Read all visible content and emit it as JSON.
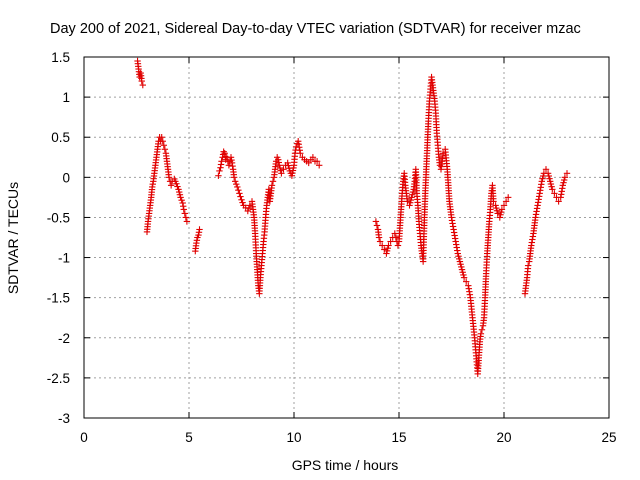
{
  "chart_data": {
    "type": "scatter",
    "title": "Day 200 of 2021, Sidereal Day-to-day VTEC variation (SDTVAR) for receiver mzac",
    "xlabel": "GPS time / hours",
    "ylabel": "SDTVAR / TECUs",
    "xlim": [
      0,
      25
    ],
    "ylim": [
      -3,
      1.5
    ],
    "xticks": [
      0,
      5,
      10,
      15,
      20,
      25
    ],
    "yticks": [
      -3,
      -2.5,
      -2,
      -1.5,
      -1,
      -0.5,
      0,
      0.5,
      1,
      1.5
    ],
    "xtick_labels": [
      "0",
      "5",
      "10",
      "15",
      "20",
      "25"
    ],
    "ytick_labels": [
      "-3",
      "-2.5",
      "-2",
      "-1.5",
      "-1",
      "-0.5",
      "0",
      "0.5",
      "1",
      "1.5"
    ],
    "grid": true,
    "marker": "+",
    "marker_color": "#e00000",
    "series": [
      {
        "name": "mzac",
        "segments": [
          [
            [
              2.55,
              1.45
            ],
            [
              2.6,
              1.35
            ],
            [
              2.65,
              1.25
            ],
            [
              2.7,
              1.3
            ],
            [
              2.75,
              1.2
            ],
            [
              2.8,
              1.15
            ]
          ],
          [
            [
              3.0,
              -0.68
            ],
            [
              3.05,
              -0.55
            ],
            [
              3.1,
              -0.45
            ],
            [
              3.15,
              -0.35
            ],
            [
              3.2,
              -0.25
            ],
            [
              3.25,
              -0.12
            ],
            [
              3.3,
              -0.05
            ],
            [
              3.35,
              0.05
            ],
            [
              3.4,
              0.15
            ],
            [
              3.45,
              0.25
            ],
            [
              3.5,
              0.35
            ],
            [
              3.55,
              0.45
            ],
            [
              3.6,
              0.5
            ],
            [
              3.65,
              0.45
            ],
            [
              3.7,
              0.5
            ],
            [
              3.75,
              0.45
            ],
            [
              3.8,
              0.4
            ],
            [
              3.85,
              0.35
            ],
            [
              3.9,
              0.3
            ],
            [
              3.95,
              0.2
            ],
            [
              4.0,
              0.1
            ],
            [
              4.05,
              0.0
            ],
            [
              4.1,
              -0.05
            ],
            [
              4.15,
              -0.1
            ],
            [
              4.2,
              -0.05
            ],
            [
              4.3,
              -0.02
            ],
            [
              4.4,
              -0.08
            ],
            [
              4.5,
              -0.15
            ],
            [
              4.6,
              -0.25
            ],
            [
              4.7,
              -0.32
            ],
            [
              4.75,
              -0.4
            ],
            [
              4.8,
              -0.45
            ],
            [
              4.85,
              -0.5
            ],
            [
              4.9,
              -0.55
            ]
          ],
          [
            [
              5.3,
              -0.92
            ],
            [
              5.35,
              -0.82
            ],
            [
              5.4,
              -0.75
            ],
            [
              5.45,
              -0.72
            ],
            [
              5.5,
              -0.65
            ]
          ],
          [
            [
              6.4,
              0.02
            ],
            [
              6.45,
              0.08
            ],
            [
              6.5,
              0.12
            ],
            [
              6.55,
              0.2
            ],
            [
              6.6,
              0.25
            ],
            [
              6.65,
              0.32
            ],
            [
              6.7,
              0.3
            ],
            [
              6.75,
              0.22
            ],
            [
              6.8,
              0.25
            ],
            [
              6.85,
              0.2
            ],
            [
              6.9,
              0.15
            ],
            [
              6.95,
              0.2
            ],
            [
              7.0,
              0.25
            ],
            [
              7.05,
              0.18
            ],
            [
              7.1,
              0.1
            ],
            [
              7.15,
              0.0
            ],
            [
              7.2,
              -0.05
            ],
            [
              7.3,
              -0.12
            ],
            [
              7.4,
              -0.2
            ],
            [
              7.5,
              -0.28
            ],
            [
              7.6,
              -0.35
            ],
            [
              7.7,
              -0.38
            ],
            [
              7.8,
              -0.42
            ],
            [
              7.9,
              -0.35
            ],
            [
              8.0,
              -0.3
            ],
            [
              8.05,
              -0.4
            ],
            [
              8.1,
              -0.5
            ],
            [
              8.15,
              -0.7
            ],
            [
              8.2,
              -0.95
            ],
            [
              8.25,
              -1.15
            ],
            [
              8.3,
              -1.35
            ],
            [
              8.35,
              -1.45
            ],
            [
              8.4,
              -1.25
            ],
            [
              8.45,
              -1.1
            ],
            [
              8.5,
              -0.95
            ],
            [
              8.55,
              -0.8
            ],
            [
              8.6,
              -0.68
            ],
            [
              8.65,
              -0.5
            ],
            [
              8.7,
              -0.35
            ],
            [
              8.75,
              -0.25
            ],
            [
              8.8,
              -0.15
            ],
            [
              8.85,
              -0.3
            ],
            [
              8.9,
              -0.2
            ],
            [
              8.95,
              -0.1
            ],
            [
              9.0,
              -0.05
            ],
            [
              9.05,
              0.0
            ],
            [
              9.1,
              0.1
            ],
            [
              9.15,
              0.2
            ],
            [
              9.2,
              0.25
            ],
            [
              9.25,
              0.22
            ],
            [
              9.3,
              0.15
            ],
            [
              9.4,
              0.05
            ],
            [
              9.5,
              0.1
            ],
            [
              9.6,
              0.15
            ],
            [
              9.7,
              0.18
            ],
            [
              9.8,
              0.08
            ],
            [
              9.9,
              0.02
            ],
            [
              10.0,
              0.15
            ],
            [
              10.05,
              0.3
            ],
            [
              10.1,
              0.38
            ],
            [
              10.15,
              0.42
            ],
            [
              10.2,
              0.45
            ],
            [
              10.3,
              0.3
            ],
            [
              10.4,
              0.25
            ],
            [
              10.5,
              0.22
            ],
            [
              10.6,
              0.2
            ],
            [
              10.7,
              0.18
            ],
            [
              10.8,
              0.22
            ],
            [
              10.9,
              0.25
            ],
            [
              11.0,
              0.2
            ],
            [
              11.1,
              0.2
            ],
            [
              11.2,
              0.15
            ]
          ],
          [
            [
              13.9,
              -0.55
            ],
            [
              13.95,
              -0.6
            ],
            [
              14.0,
              -0.65
            ],
            [
              14.05,
              -0.75
            ],
            [
              14.1,
              -0.8
            ],
            [
              14.2,
              -0.85
            ],
            [
              14.3,
              -0.9
            ],
            [
              14.4,
              -0.95
            ],
            [
              14.5,
              -0.85
            ],
            [
              14.6,
              -0.8
            ],
            [
              14.7,
              -0.75
            ],
            [
              14.8,
              -0.7
            ],
            [
              14.85,
              -0.75
            ],
            [
              14.9,
              -0.8
            ],
            [
              14.95,
              -0.85
            ],
            [
              15.0,
              -0.8
            ],
            [
              15.05,
              -0.6
            ],
            [
              15.1,
              -0.4
            ],
            [
              15.15,
              -0.2
            ],
            [
              15.2,
              -0.05
            ],
            [
              15.25,
              0.05
            ],
            [
              15.3,
              -0.1
            ],
            [
              15.35,
              -0.2
            ],
            [
              15.4,
              -0.3
            ],
            [
              15.5,
              -0.35
            ],
            [
              15.6,
              -0.25
            ],
            [
              15.7,
              -0.15
            ],
            [
              15.75,
              -0.05
            ],
            [
              15.8,
              0.1
            ],
            [
              15.85,
              -0.2
            ],
            [
              15.9,
              -0.35
            ],
            [
              15.95,
              -0.55
            ],
            [
              16.0,
              -0.7
            ],
            [
              16.05,
              -0.85
            ],
            [
              16.1,
              -0.95
            ],
            [
              16.15,
              -1.05
            ],
            [
              16.2,
              -0.6
            ],
            [
              16.25,
              -0.2
            ],
            [
              16.3,
              0.1
            ],
            [
              16.35,
              0.4
            ],
            [
              16.4,
              0.7
            ],
            [
              16.45,
              0.95
            ],
            [
              16.5,
              1.1
            ],
            [
              16.55,
              1.25
            ],
            [
              16.6,
              1.15
            ],
            [
              16.65,
              1.05
            ],
            [
              16.7,
              0.95
            ],
            [
              16.75,
              0.8
            ],
            [
              16.8,
              0.55
            ],
            [
              16.85,
              0.4
            ],
            [
              16.9,
              0.25
            ],
            [
              16.95,
              0.15
            ],
            [
              17.0,
              0.1
            ],
            [
              17.05,
              0.2
            ],
            [
              17.1,
              0.3
            ],
            [
              17.2,
              0.35
            ],
            [
              17.3,
              0.1
            ],
            [
              17.35,
              -0.1
            ],
            [
              17.4,
              -0.3
            ],
            [
              17.5,
              -0.5
            ],
            [
              17.6,
              -0.65
            ],
            [
              17.7,
              -0.8
            ],
            [
              17.8,
              -0.95
            ],
            [
              17.9,
              -1.05
            ],
            [
              18.0,
              -1.15
            ],
            [
              18.1,
              -1.25
            ],
            [
              18.2,
              -1.3
            ],
            [
              18.3,
              -1.35
            ],
            [
              18.4,
              -1.5
            ],
            [
              18.5,
              -1.75
            ],
            [
              18.6,
              -2.0
            ],
            [
              18.65,
              -2.15
            ],
            [
              18.7,
              -2.3
            ],
            [
              18.75,
              -2.45
            ],
            [
              18.8,
              -2.25
            ],
            [
              18.85,
              -2.05
            ],
            [
              18.9,
              -1.95
            ],
            [
              18.95,
              -1.9
            ],
            [
              19.0,
              -1.85
            ],
            [
              19.05,
              -1.75
            ],
            [
              19.1,
              -1.5
            ],
            [
              19.15,
              -1.2
            ],
            [
              19.2,
              -0.95
            ],
            [
              19.25,
              -0.75
            ],
            [
              19.3,
              -0.55
            ],
            [
              19.35,
              -0.4
            ],
            [
              19.4,
              -0.2
            ],
            [
              19.45,
              -0.1
            ],
            [
              19.5,
              -0.3
            ],
            [
              19.6,
              -0.35
            ],
            [
              19.7,
              -0.45
            ],
            [
              19.8,
              -0.5
            ],
            [
              19.9,
              -0.4
            ],
            [
              20.0,
              -0.35
            ],
            [
              20.1,
              -0.3
            ],
            [
              20.2,
              -0.25
            ]
          ],
          [
            [
              21.0,
              -1.45
            ],
            [
              21.05,
              -1.35
            ],
            [
              21.1,
              -1.25
            ],
            [
              21.15,
              -1.1
            ],
            [
              21.2,
              -1.05
            ],
            [
              21.3,
              -0.85
            ],
            [
              21.4,
              -0.7
            ],
            [
              21.5,
              -0.5
            ],
            [
              21.6,
              -0.35
            ],
            [
              21.7,
              -0.2
            ],
            [
              21.8,
              -0.05
            ],
            [
              21.9,
              0.05
            ],
            [
              22.0,
              0.1
            ],
            [
              22.1,
              0.05
            ],
            [
              22.2,
              -0.05
            ],
            [
              22.3,
              -0.15
            ],
            [
              22.4,
              -0.2
            ],
            [
              22.5,
              -0.25
            ],
            [
              22.6,
              -0.3
            ],
            [
              22.7,
              -0.25
            ],
            [
              22.8,
              -0.1
            ],
            [
              22.9,
              0.0
            ],
            [
              23.0,
              0.05
            ]
          ]
        ]
      }
    ]
  }
}
